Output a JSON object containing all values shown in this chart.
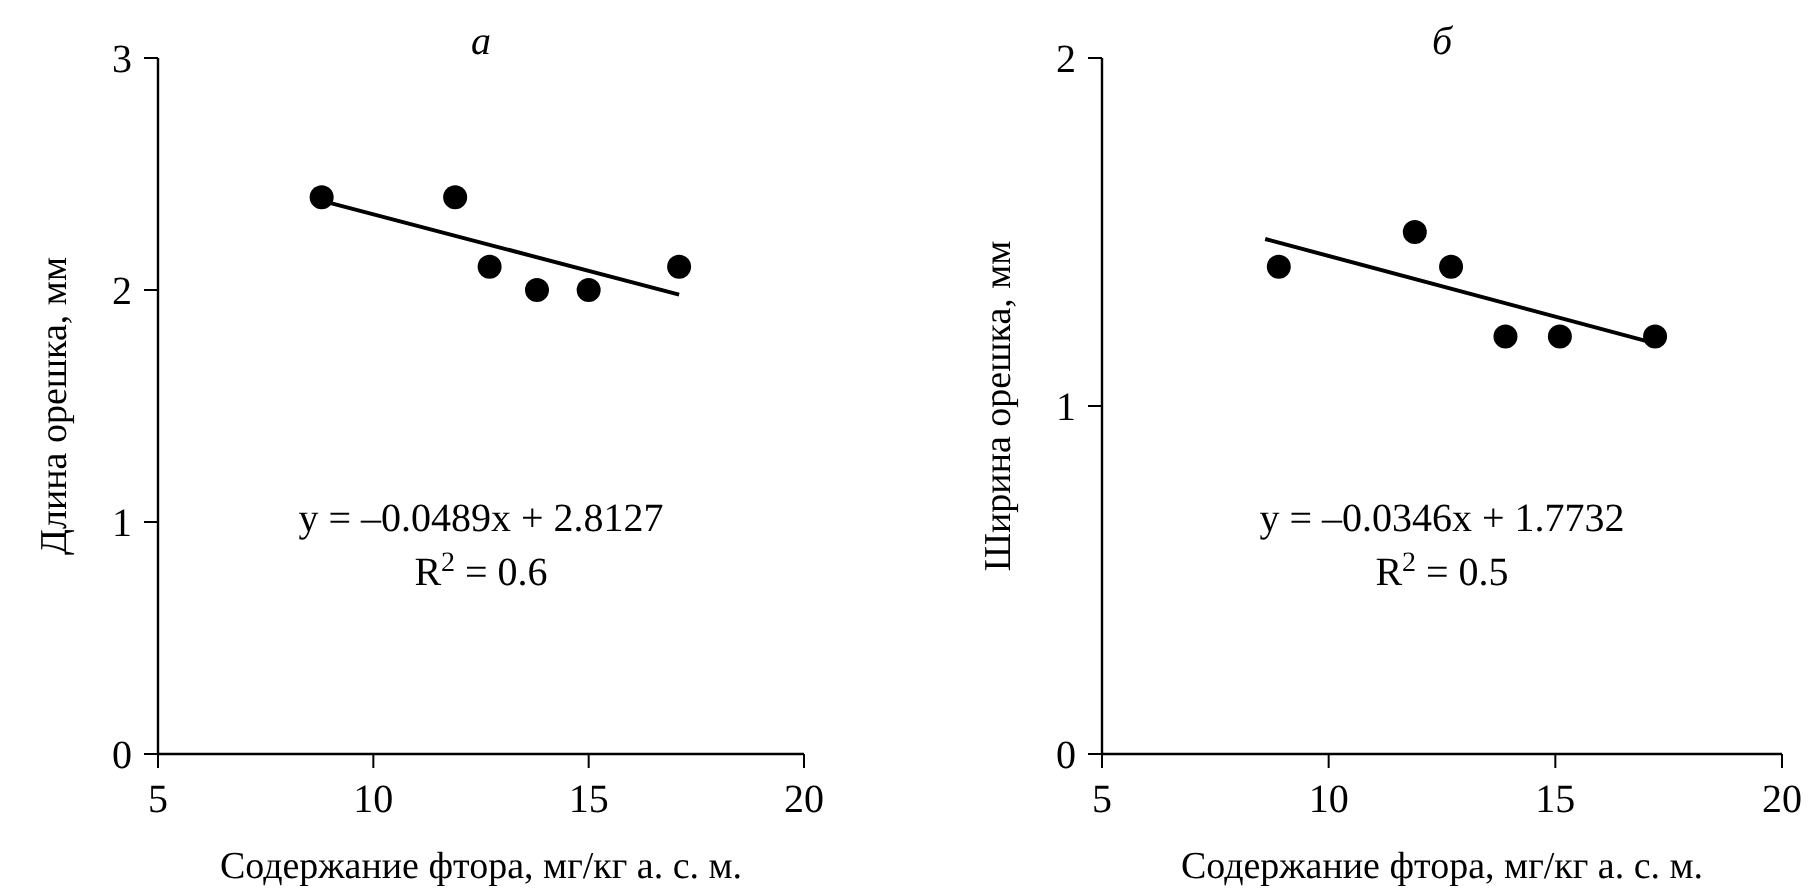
{
  "chart_data": [
    {
      "type": "scatter",
      "title": "а",
      "xlabel": "Содержание фтора, мг/кг а. с. м.",
      "ylabel": "Длина орешка, мм",
      "xlim": [
        5,
        20
      ],
      "xticks": [
        5,
        10,
        15,
        20
      ],
      "ylim": [
        0,
        3
      ],
      "yticks": [
        0,
        1,
        2,
        3
      ],
      "series": [
        {
          "marker": "circle",
          "color": "#000000",
          "x": [
            8.8,
            11.9,
            12.7,
            13.8,
            15.0,
            17.1
          ],
          "values": [
            2.4,
            2.4,
            2.1,
            2.0,
            2.0,
            2.1
          ]
        },
        {
          "type": "line",
          "color": "#000000",
          "x": [
            8.9,
            17.1
          ],
          "values": [
            2.38,
            1.98
          ]
        }
      ],
      "annotations": [
        "y = –0.0489x + 2.8127",
        "R$^{2}$ = 0.6"
      ]
    },
    {
      "type": "scatter",
      "title": "б",
      "xlabel": "Содержание фтора, мг/кг а. с. м.",
      "ylabel": "Ширина орешка, мм",
      "xlim": [
        5,
        20
      ],
      "xticks": [
        5,
        10,
        15,
        20
      ],
      "ylim": [
        0,
        2
      ],
      "yticks": [
        0,
        1,
        2
      ],
      "series": [
        {
          "marker": "circle",
          "color": "#000000",
          "x": [
            8.9,
            11.9,
            12.7,
            13.9,
            15.1,
            17.2
          ],
          "values": [
            1.4,
            1.5,
            1.4,
            1.2,
            1.2,
            1.2
          ]
        },
        {
          "type": "line",
          "color": "#000000",
          "x": [
            8.6,
            17.2
          ],
          "values": [
            1.48,
            1.18
          ]
        }
      ],
      "annotations": [
        "y = –0.0346x + 1.7732",
        "R$^{2}$ = 0.5"
      ]
    }
  ]
}
